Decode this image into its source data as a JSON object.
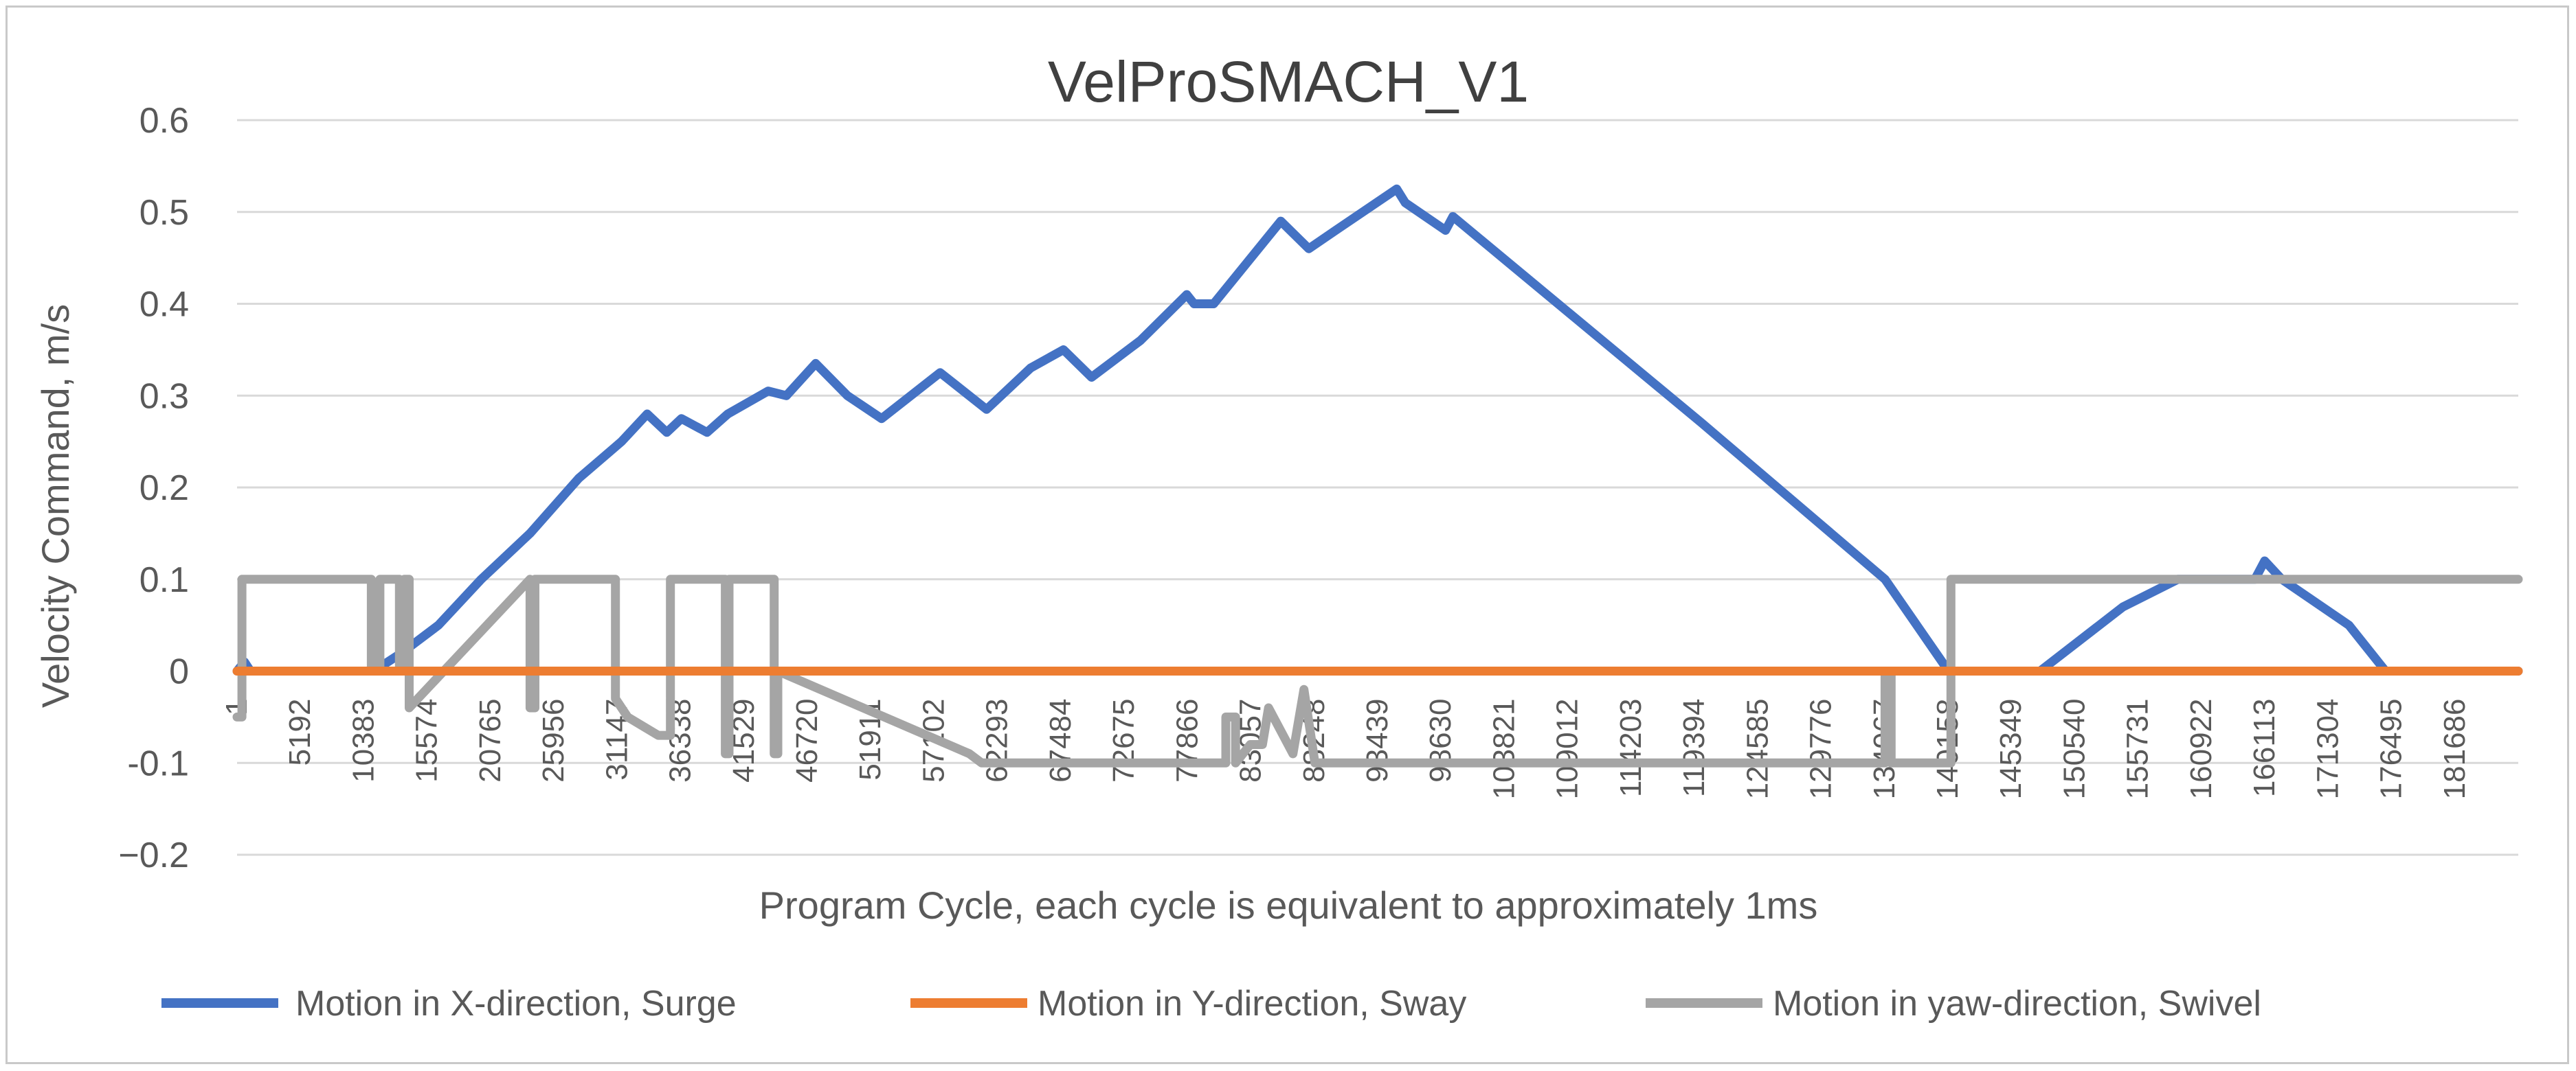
{
  "chart_data": {
    "type": "line",
    "title": "VelProSMACH_V1",
    "xlabel": "Program Cycle, each cycle is equivalent to approximately 1ms",
    "ylabel": "Velocity Command, m/s",
    "ylim": [
      -0.2,
      0.6
    ],
    "xlim": [
      0,
      186877
    ],
    "y_ticks": [
      "0.6",
      "0.5",
      "0.4",
      "0.3",
      "0.2",
      "0.1",
      "0",
      "-0.1",
      "−0.2"
    ],
    "y_tick_values": [
      0.6,
      0.5,
      0.4,
      0.3,
      0.2,
      0.1,
      0,
      -0.1,
      -0.2
    ],
    "x_tick_labels": [
      "1",
      "5192",
      "10383",
      "15574",
      "20765",
      "25956",
      "31147",
      "36338",
      "41529",
      "46720",
      "51911",
      "57102",
      "62293",
      "67484",
      "72675",
      "77866",
      "83057",
      "88248",
      "93439",
      "98630",
      "103821",
      "109012",
      "114203",
      "119394",
      "124585",
      "129776",
      "134967",
      "140158",
      "145349",
      "150540",
      "155731",
      "160922",
      "166113",
      "171304",
      "176495",
      "181686"
    ],
    "x_tick_values": [
      1,
      5192,
      10383,
      15574,
      20765,
      25956,
      31147,
      36338,
      41529,
      46720,
      51911,
      57102,
      62293,
      67484,
      72675,
      77866,
      83057,
      88248,
      93439,
      98630,
      103821,
      109012,
      114203,
      119394,
      124585,
      129776,
      134967,
      140158,
      145349,
      150540,
      155731,
      160922,
      166113,
      171304,
      176495,
      181686
    ],
    "legend_position": "bottom",
    "series": [
      {
        "name": "Motion in X-direction, Surge",
        "color": "#4472c4",
        "x": [
          1,
          600,
          1100,
          11200,
          13500,
          16500,
          20000,
          24000,
          28000,
          31500,
          33600,
          35200,
          36400,
          38500,
          40200,
          43500,
          45000,
          47400,
          50000,
          52800,
          57600,
          61400,
          65000,
          67700,
          70000,
          74000,
          77800,
          78400,
          80000,
          85500,
          87800,
          90000,
          95000,
          95700,
          99000,
          99600,
          120000,
          135000,
          140200,
          147700,
          154500,
          159000,
          162500,
          165300,
          166100,
          167500,
          173000,
          176000,
          186877
        ],
        "y": [
          0.0,
          0.01,
          0.0,
          0.0,
          0.02,
          0.05,
          0.1,
          0.15,
          0.21,
          0.25,
          0.28,
          0.26,
          0.275,
          0.26,
          0.28,
          0.305,
          0.3,
          0.335,
          0.3,
          0.275,
          0.325,
          0.285,
          0.33,
          0.35,
          0.32,
          0.36,
          0.41,
          0.4,
          0.4,
          0.49,
          0.46,
          0.48,
          0.525,
          0.51,
          0.48,
          0.495,
          0.27,
          0.1,
          0.0,
          0.0,
          0.07,
          0.1,
          0.1,
          0.1,
          0.12,
          0.1,
          0.05,
          0.0,
          0.0
        ]
      },
      {
        "name": "Motion in Y-direction, Sway",
        "color": "#ed7d31",
        "x": [
          1,
          186877
        ],
        "y": [
          0.0,
          0.0
        ]
      },
      {
        "name": "Motion in yaw-direction, Swivel",
        "color": "#a5a5a5",
        "x": [
          1,
          400,
          400,
          11000,
          11000,
          11700,
          11700,
          13300,
          13300,
          13700,
          13700,
          14100,
          14100,
          24000,
          24000,
          24400,
          24400,
          31000,
          31000,
          32000,
          34500,
          35500,
          35500,
          40000,
          40000,
          40300,
          40300,
          44000,
          44000,
          44300,
          44300,
          60000,
          61000,
          81000,
          81000,
          81800,
          81800,
          83000,
          84000,
          84500,
          84500,
          86500,
          86500,
          87400,
          87400,
          88300,
          88300,
          89500,
          89500,
          135000,
          135000,
          135500,
          135500,
          140400,
          140400,
          186877
        ],
        "y": [
          -0.05,
          -0.05,
          0.1,
          0.1,
          0.0,
          0.0,
          0.1,
          0.1,
          0.0,
          0.0,
          0.1,
          0.1,
          -0.04,
          0.1,
          -0.04,
          -0.04,
          0.1,
          0.1,
          -0.03,
          -0.05,
          -0.07,
          -0.07,
          0.1,
          0.1,
          -0.09,
          -0.09,
          0.1,
          0.1,
          -0.09,
          -0.09,
          0.0,
          -0.09,
          -0.1,
          -0.1,
          -0.05,
          -0.05,
          -0.1,
          -0.08,
          -0.08,
          -0.04,
          -0.04,
          -0.09,
          -0.09,
          -0.02,
          -0.02,
          -0.1,
          -0.1,
          -0.1,
          -0.1,
          -0.1,
          0.0,
          0.0,
          -0.1,
          -0.1,
          0.1,
          0.1
        ]
      }
    ]
  }
}
